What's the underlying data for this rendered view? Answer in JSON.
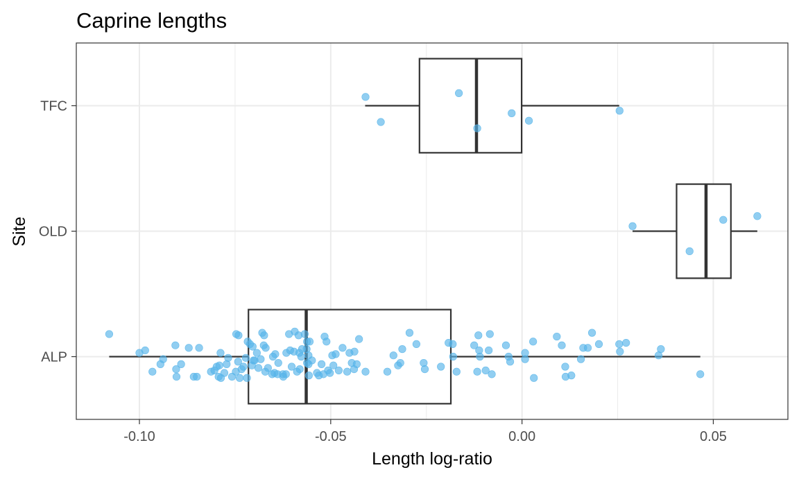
{
  "chart_data": {
    "type": "boxplot",
    "title": "Caprine lengths",
    "xlabel": "Length log-ratio",
    "ylabel": "Site",
    "xlim": [
      -0.1165,
      0.0695
    ],
    "x_ticks": [
      -0.1,
      -0.05,
      0.0,
      0.05
    ],
    "x_tick_labels": [
      "-0.10",
      "-0.05",
      "0.00",
      "0.05"
    ],
    "categories": [
      "ALP",
      "OLD",
      "TFC"
    ],
    "grid": true,
    "point_color": "#56B4E9",
    "box_color": "#333333",
    "boxes": [
      {
        "site": "TFC",
        "min": -0.041,
        "q1": -0.0268,
        "median": -0.0119,
        "q3": -0.0001,
        "max": 0.0254
      },
      {
        "site": "OLD",
        "min": 0.0289,
        "q1": 0.0404,
        "median": 0.0481,
        "q3": 0.0546,
        "max": 0.0615
      },
      {
        "site": "ALP",
        "min": -0.1079,
        "q1": -0.0715,
        "median": -0.0564,
        "q3": -0.0186,
        "max": 0.0466
      }
    ],
    "points": {
      "TFC": [
        {
          "x": -0.0409,
          "y": 0.07
        },
        {
          "x": -0.0369,
          "y": -0.13
        },
        {
          "x": -0.0165,
          "y": 0.1
        },
        {
          "x": -0.0117,
          "y": -0.18
        },
        {
          "x": -0.0027,
          "y": -0.06
        },
        {
          "x": 0.0018,
          "y": -0.12
        },
        {
          "x": 0.0255,
          "y": -0.04
        }
      ],
      "OLD": [
        {
          "x": 0.0289,
          "y": 0.04
        },
        {
          "x": 0.0438,
          "y": -0.16
        },
        {
          "x": 0.0526,
          "y": 0.09
        },
        {
          "x": 0.0615,
          "y": 0.12
        }
      ],
      "ALP": [
        {
          "x": -0.1079,
          "y": 0.18
        },
        {
          "x": -0.1,
          "y": 0.03
        },
        {
          "x": -0.0985,
          "y": 0.05
        },
        {
          "x": -0.0966,
          "y": -0.12
        },
        {
          "x": -0.0945,
          "y": -0.06
        },
        {
          "x": -0.0938,
          "y": -0.02
        },
        {
          "x": -0.0906,
          "y": 0.09
        },
        {
          "x": -0.0904,
          "y": -0.1
        },
        {
          "x": -0.0903,
          "y": -0.16
        },
        {
          "x": -0.0891,
          "y": -0.06
        },
        {
          "x": -0.0871,
          "y": 0.07
        },
        {
          "x": -0.0858,
          "y": -0.16
        },
        {
          "x": -0.085,
          "y": -0.16
        },
        {
          "x": -0.0844,
          "y": 0.07
        },
        {
          "x": -0.0813,
          "y": -0.12
        },
        {
          "x": -0.0804,
          "y": -0.11
        },
        {
          "x": -0.0798,
          "y": -0.08
        },
        {
          "x": -0.0793,
          "y": -0.16
        },
        {
          "x": -0.0791,
          "y": -0.07
        },
        {
          "x": -0.0788,
          "y": 0.03
        },
        {
          "x": -0.0787,
          "y": -0.17
        },
        {
          "x": -0.0778,
          "y": -0.13
        },
        {
          "x": -0.0772,
          "y": -0.06
        },
        {
          "x": -0.0768,
          "y": -0.01
        },
        {
          "x": -0.0758,
          "y": -0.16
        },
        {
          "x": -0.0748,
          "y": -0.12
        },
        {
          "x": -0.0747,
          "y": 0.18
        },
        {
          "x": -0.0742,
          "y": -0.04
        },
        {
          "x": -0.0741,
          "y": 0.17
        },
        {
          "x": -0.0738,
          "y": -0.17
        },
        {
          "x": -0.0733,
          "y": -0.1
        },
        {
          "x": -0.0728,
          "y": -0.08
        },
        {
          "x": -0.0722,
          "y": -0.01
        },
        {
          "x": -0.0719,
          "y": -0.17
        },
        {
          "x": -0.0717,
          "y": 0.12
        },
        {
          "x": -0.0711,
          "y": 0.1
        },
        {
          "x": -0.0706,
          "y": -0.07
        },
        {
          "x": -0.0704,
          "y": 0.08
        },
        {
          "x": -0.0702,
          "y": -0.03
        },
        {
          "x": -0.0699,
          "y": -0.03
        },
        {
          "x": -0.0693,
          "y": 0.03
        },
        {
          "x": -0.0689,
          "y": -0.09
        },
        {
          "x": -0.0683,
          "y": -0.02
        },
        {
          "x": -0.0679,
          "y": 0.19
        },
        {
          "x": -0.0675,
          "y": 0.09
        },
        {
          "x": -0.0674,
          "y": 0.17
        },
        {
          "x": -0.0671,
          "y": -0.12
        },
        {
          "x": -0.067,
          "y": 0.07
        },
        {
          "x": -0.0664,
          "y": -0.09
        },
        {
          "x": -0.0653,
          "y": -0.14
        },
        {
          "x": -0.0651,
          "y": 0.0
        },
        {
          "x": -0.0647,
          "y": -0.13
        },
        {
          "x": -0.0645,
          "y": 0.02
        },
        {
          "x": -0.0639,
          "y": -0.14
        },
        {
          "x": -0.0637,
          "y": -0.05
        },
        {
          "x": -0.0625,
          "y": -0.14
        },
        {
          "x": -0.0624,
          "y": -0.16
        },
        {
          "x": -0.0617,
          "y": -0.14
        },
        {
          "x": -0.0616,
          "y": 0.03
        },
        {
          "x": -0.0609,
          "y": 0.18
        },
        {
          "x": -0.0606,
          "y": 0.05
        },
        {
          "x": -0.0602,
          "y": -0.08
        },
        {
          "x": -0.0596,
          "y": 0.04
        },
        {
          "x": -0.0594,
          "y": 0.2
        },
        {
          "x": -0.0588,
          "y": -0.12
        },
        {
          "x": -0.0584,
          "y": 0.17
        },
        {
          "x": -0.0582,
          "y": 0.03
        },
        {
          "x": -0.0581,
          "y": -0.1
        },
        {
          "x": -0.0577,
          "y": 0.0
        },
        {
          "x": -0.0575,
          "y": 0.06
        },
        {
          "x": -0.0568,
          "y": 0.18
        },
        {
          "x": -0.0563,
          "y": 0.06
        },
        {
          "x": -0.0562,
          "y": -0.05
        },
        {
          "x": -0.0562,
          "y": 0.12
        },
        {
          "x": -0.0558,
          "y": -0.06
        },
        {
          "x": -0.0558,
          "y": 0.01
        },
        {
          "x": -0.0557,
          "y": -0.15
        },
        {
          "x": -0.0555,
          "y": 0.12
        },
        {
          "x": -0.0549,
          "y": -0.03
        },
        {
          "x": -0.0536,
          "y": -0.13
        },
        {
          "x": -0.0531,
          "y": -0.15
        },
        {
          "x": -0.0524,
          "y": -0.06
        },
        {
          "x": -0.0519,
          "y": -0.14
        },
        {
          "x": -0.0516,
          "y": 0.16
        },
        {
          "x": -0.0511,
          "y": 0.12
        },
        {
          "x": -0.0507,
          "y": -0.11
        },
        {
          "x": -0.0502,
          "y": -0.13
        },
        {
          "x": -0.0496,
          "y": 0.01
        },
        {
          "x": -0.0493,
          "y": -0.07
        },
        {
          "x": -0.0487,
          "y": 0.02
        },
        {
          "x": -0.0479,
          "y": -0.11
        },
        {
          "x": -0.0469,
          "y": 0.07
        },
        {
          "x": -0.0457,
          "y": -0.12
        },
        {
          "x": -0.0451,
          "y": 0.03
        },
        {
          "x": -0.0445,
          "y": -0.05
        },
        {
          "x": -0.0439,
          "y": -0.1
        },
        {
          "x": -0.0438,
          "y": 0.04
        },
        {
          "x": -0.0432,
          "y": -0.06
        },
        {
          "x": -0.0426,
          "y": 0.14
        },
        {
          "x": -0.0409,
          "y": -0.12
        },
        {
          "x": -0.0352,
          "y": -0.12
        },
        {
          "x": -0.0336,
          "y": 0.01
        },
        {
          "x": -0.0324,
          "y": -0.07
        },
        {
          "x": -0.0318,
          "y": -0.05
        },
        {
          "x": -0.0313,
          "y": 0.06
        },
        {
          "x": -0.0294,
          "y": 0.19
        },
        {
          "x": -0.0276,
          "y": 0.1
        },
        {
          "x": -0.0257,
          "y": -0.05
        },
        {
          "x": -0.0254,
          "y": -0.1
        },
        {
          "x": -0.0212,
          "y": -0.08
        },
        {
          "x": -0.0192,
          "y": 0.11
        },
        {
          "x": -0.0181,
          "y": 0.1
        },
        {
          "x": -0.018,
          "y": 0.0
        },
        {
          "x": -0.0171,
          "y": -0.12
        },
        {
          "x": -0.0125,
          "y": 0.09
        },
        {
          "x": -0.0117,
          "y": -0.12
        },
        {
          "x": -0.0114,
          "y": 0.17
        },
        {
          "x": -0.0112,
          "y": 0.05
        },
        {
          "x": -0.011,
          "y": 0.0
        },
        {
          "x": -0.0095,
          "y": -0.11
        },
        {
          "x": -0.0087,
          "y": 0.05
        },
        {
          "x": -0.0084,
          "y": 0.18
        },
        {
          "x": -0.0079,
          "y": -0.14
        },
        {
          "x": -0.0042,
          "y": 0.09
        },
        {
          "x": -0.0035,
          "y": 0.0
        },
        {
          "x": -0.0031,
          "y": -0.04
        },
        {
          "x": 0.0008,
          "y": 0.03
        },
        {
          "x": 0.0008,
          "y": -0.02
        },
        {
          "x": 0.0029,
          "y": 0.12
        },
        {
          "x": 0.0031,
          "y": -0.17
        },
        {
          "x": 0.0091,
          "y": 0.16
        },
        {
          "x": 0.0104,
          "y": 0.09
        },
        {
          "x": 0.0113,
          "y": -0.08
        },
        {
          "x": 0.0114,
          "y": -0.16
        },
        {
          "x": 0.0129,
          "y": -0.15
        },
        {
          "x": 0.0154,
          "y": -0.02
        },
        {
          "x": 0.016,
          "y": 0.07
        },
        {
          "x": 0.0172,
          "y": 0.07
        },
        {
          "x": 0.0183,
          "y": 0.19
        },
        {
          "x": 0.0201,
          "y": 0.1
        },
        {
          "x": 0.0254,
          "y": 0.1
        },
        {
          "x": 0.0256,
          "y": 0.04
        },
        {
          "x": 0.0272,
          "y": 0.11
        },
        {
          "x": 0.0357,
          "y": 0.01
        },
        {
          "x": 0.0363,
          "y": 0.06
        },
        {
          "x": 0.0466,
          "y": -0.14
        }
      ]
    }
  }
}
